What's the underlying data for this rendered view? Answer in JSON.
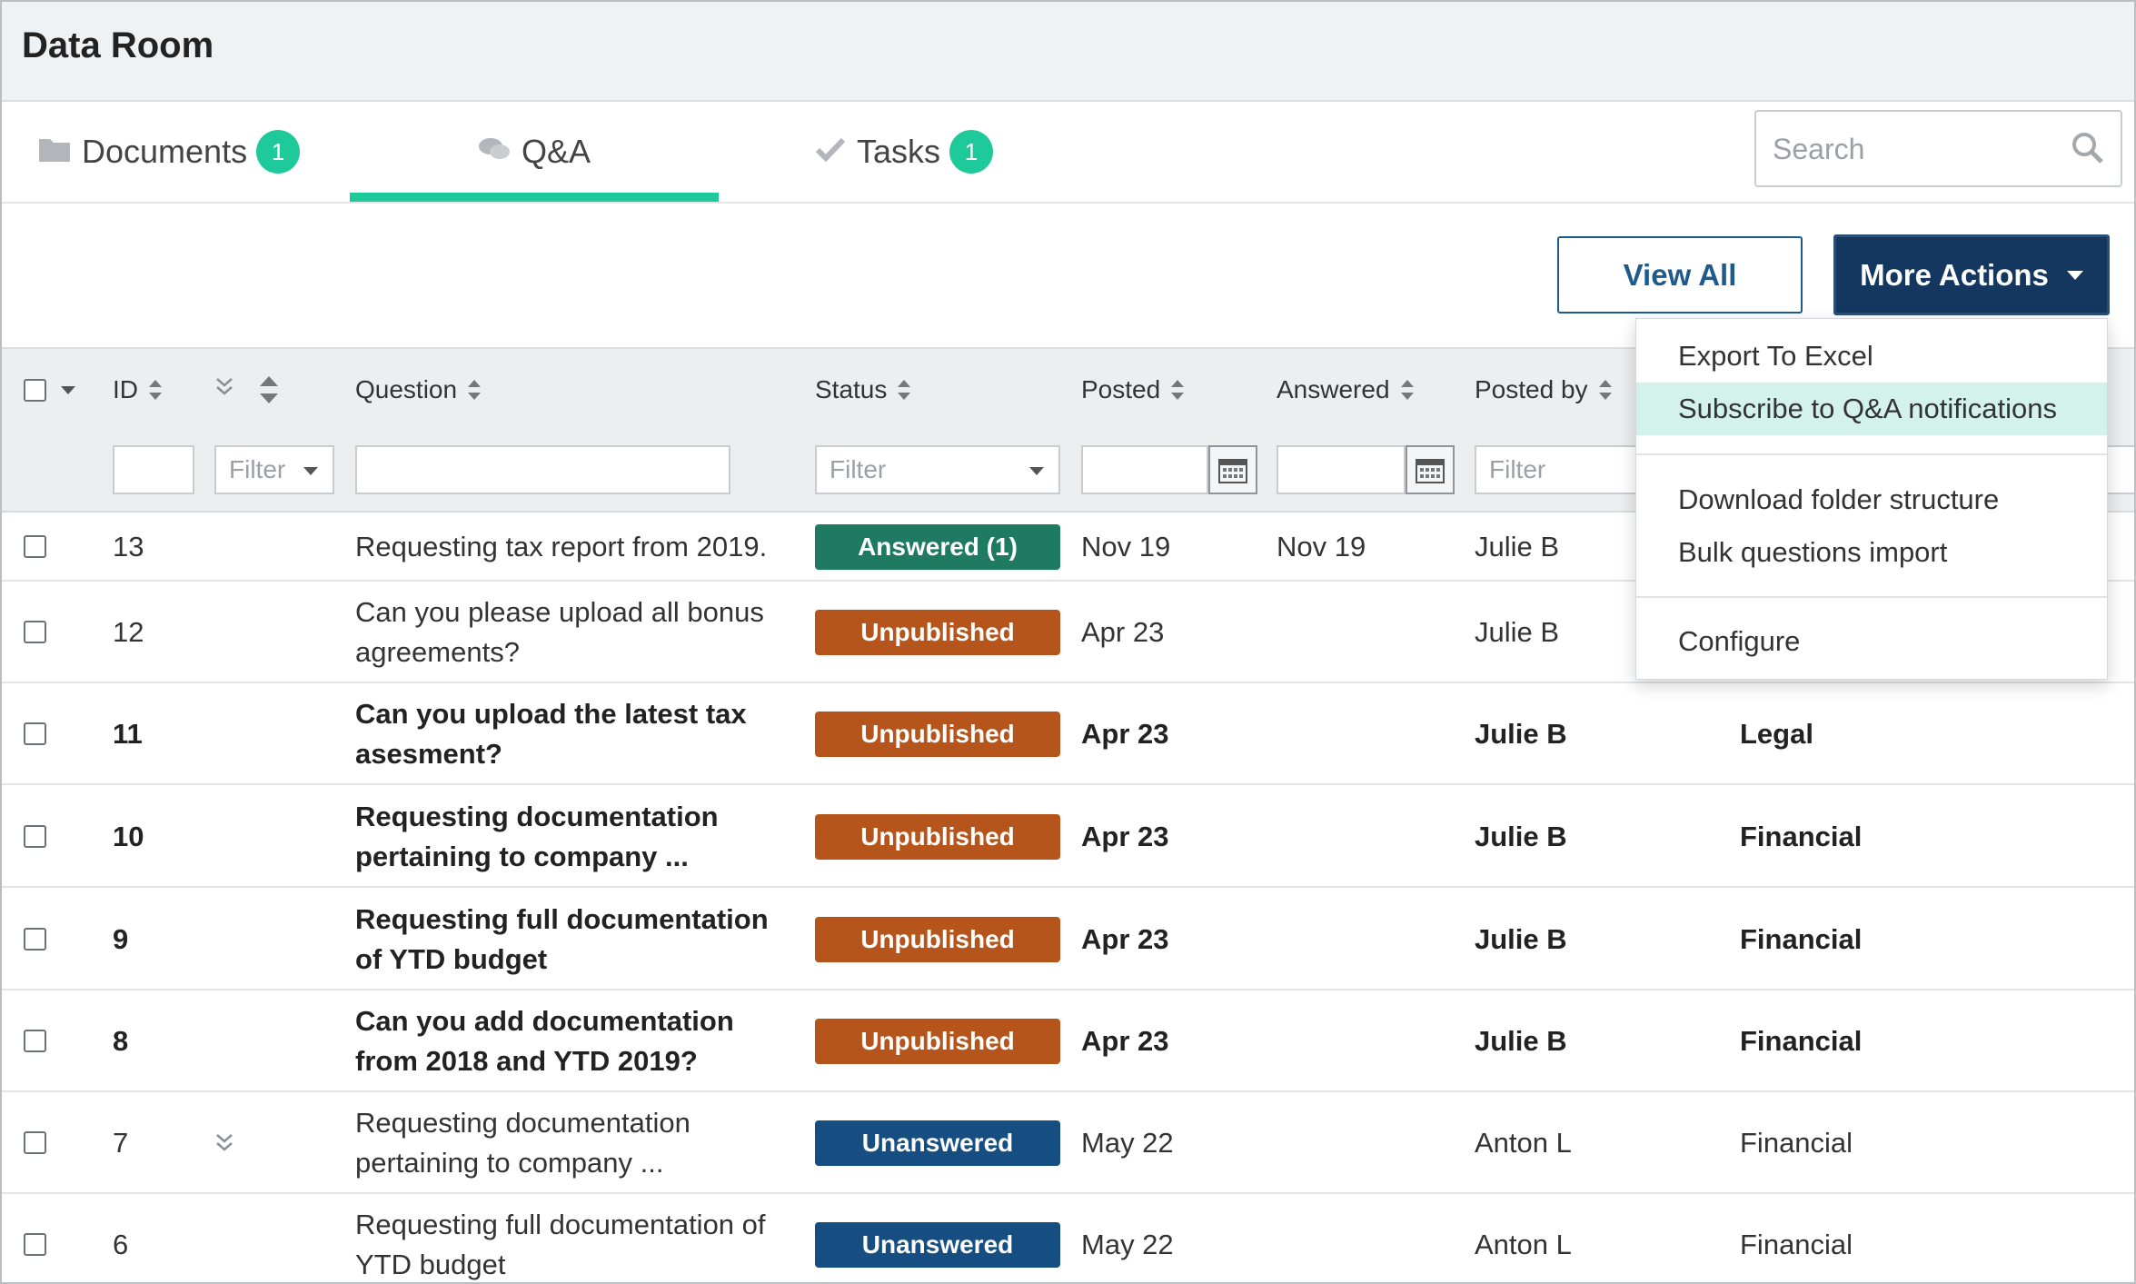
{
  "app": {
    "title": "Data Room"
  },
  "tabs": [
    {
      "label": "Documents",
      "badge": "1"
    },
    {
      "label": "Q&A",
      "badge": ""
    },
    {
      "label": "Tasks",
      "badge": "1"
    }
  ],
  "search": {
    "placeholder": "Search"
  },
  "toolbar": {
    "view_all": "View All",
    "more_actions": "More Actions"
  },
  "columns": {
    "id": "ID",
    "question": "Question",
    "status": "Status",
    "posted": "Posted",
    "answered": "Answered",
    "posted_by": "Posted by"
  },
  "filters": {
    "placeholder": "Filter"
  },
  "menu": {
    "items": [
      "Export To Excel",
      "Subscribe to Q&A notifications",
      "Download folder structure",
      "Bulk questions import",
      "Configure"
    ],
    "highlighted": "Subscribe to Q&A notifications"
  },
  "rows": [
    {
      "id": "13",
      "question": "Requesting tax report from 2019.",
      "status": "Answered (1)",
      "status_type": "answered",
      "posted": "Nov 19",
      "answered": "Nov 19",
      "posted_by": "Julie B",
      "category": "",
      "bold": false,
      "expand": false
    },
    {
      "id": "12",
      "question": "Can you please upload all bonus agreements?",
      "status": "Unpublished",
      "status_type": "unpublished",
      "posted": "Apr 23",
      "answered": "",
      "posted_by": "Julie B",
      "category": "",
      "bold": false,
      "expand": false
    },
    {
      "id": "11",
      "question": "Can you upload the latest tax asesment?",
      "status": "Unpublished",
      "status_type": "unpublished",
      "posted": "Apr 23",
      "answered": "",
      "posted_by": "Julie B",
      "category": "Legal",
      "bold": true,
      "expand": false
    },
    {
      "id": "10",
      "question": "Requesting documentation pertaining to company ...",
      "status": "Unpublished",
      "status_type": "unpublished",
      "posted": "Apr 23",
      "answered": "",
      "posted_by": "Julie B",
      "category": "Financial",
      "bold": true,
      "expand": false
    },
    {
      "id": "9",
      "question": "Requesting full documentation of YTD budget",
      "status": "Unpublished",
      "status_type": "unpublished",
      "posted": "Apr 23",
      "answered": "",
      "posted_by": "Julie B",
      "category": "Financial",
      "bold": true,
      "expand": false
    },
    {
      "id": "8",
      "question": "Can you add documentation from 2018 and YTD 2019?",
      "status": "Unpublished",
      "status_type": "unpublished",
      "posted": "Apr 23",
      "answered": "",
      "posted_by": "Julie B",
      "category": "Financial",
      "bold": true,
      "expand": false
    },
    {
      "id": "7",
      "question": "Requesting documentation pertaining to company ...",
      "status": "Unanswered",
      "status_type": "unanswered",
      "posted": "May 22",
      "answered": "",
      "posted_by": "Anton L",
      "category": "Financial",
      "bold": false,
      "expand": true
    },
    {
      "id": "6",
      "question": "Requesting full documentation of YTD budget",
      "status": "Unanswered",
      "status_type": "unanswered",
      "posted": "May 22",
      "answered": "",
      "posted_by": "Anton L",
      "category": "Financial",
      "bold": false,
      "expand": false
    }
  ]
}
